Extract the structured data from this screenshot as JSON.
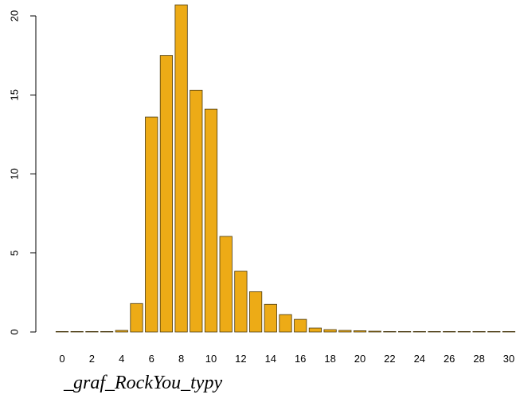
{
  "caption": "_graf_RockYou_typy",
  "chart_data": {
    "type": "bar",
    "title": "",
    "xlabel": "",
    "ylabel": "",
    "categories": [
      "0",
      "1",
      "2",
      "3",
      "4",
      "5",
      "6",
      "7",
      "8",
      "9",
      "10",
      "11",
      "12",
      "13",
      "14",
      "15",
      "16",
      "17",
      "18",
      "19",
      "20",
      "21",
      "22",
      "23",
      "24",
      "25",
      "26",
      "27",
      "28",
      "29",
      "30"
    ],
    "values": [
      0,
      0,
      0,
      0,
      0.1,
      1.8,
      13.6,
      17.5,
      20.7,
      15.3,
      14.1,
      6.05,
      3.85,
      2.55,
      1.75,
      1.1,
      0.8,
      0.25,
      0.15,
      0.1,
      0.08,
      0.05,
      0.03,
      0.02,
      0.01,
      0.01,
      0.01,
      0,
      0,
      0,
      0
    ],
    "x_tick_labels": [
      "0",
      "2",
      "4",
      "6",
      "8",
      "10",
      "12",
      "14",
      "16",
      "18",
      "20",
      "22",
      "24",
      "26",
      "28",
      "30"
    ],
    "y_ticks": [
      0,
      5,
      10,
      15,
      20
    ],
    "ylim": [
      0,
      21
    ],
    "grid": false,
    "colors": {
      "bar_fill": "#EDAB16",
      "bar_stroke": "#4a3a10",
      "axis": "#000000"
    }
  }
}
